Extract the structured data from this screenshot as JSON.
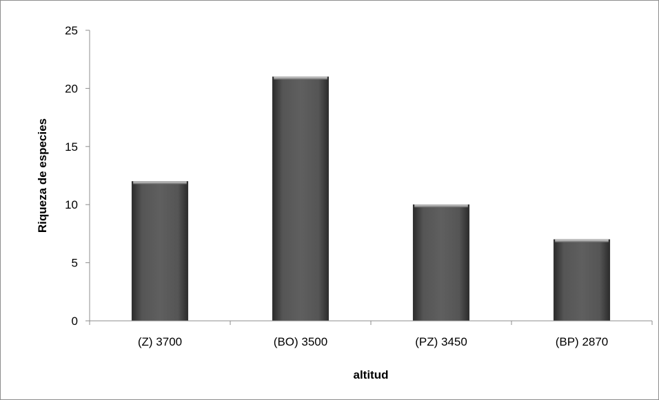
{
  "chart_data": {
    "type": "bar",
    "title": "",
    "xlabel": "altitud",
    "ylabel": "Riqueza de especies",
    "categories": [
      "(Z) 3700",
      "(BO) 3500",
      "(PZ) 3450",
      "(BP) 2870"
    ],
    "values": [
      12,
      21,
      10,
      7
    ],
    "ylim": [
      0,
      25
    ],
    "yticks": [
      0,
      5,
      10,
      15,
      20,
      25
    ],
    "grid": false,
    "legend": "none",
    "bar_color": "#4a4a4a"
  }
}
